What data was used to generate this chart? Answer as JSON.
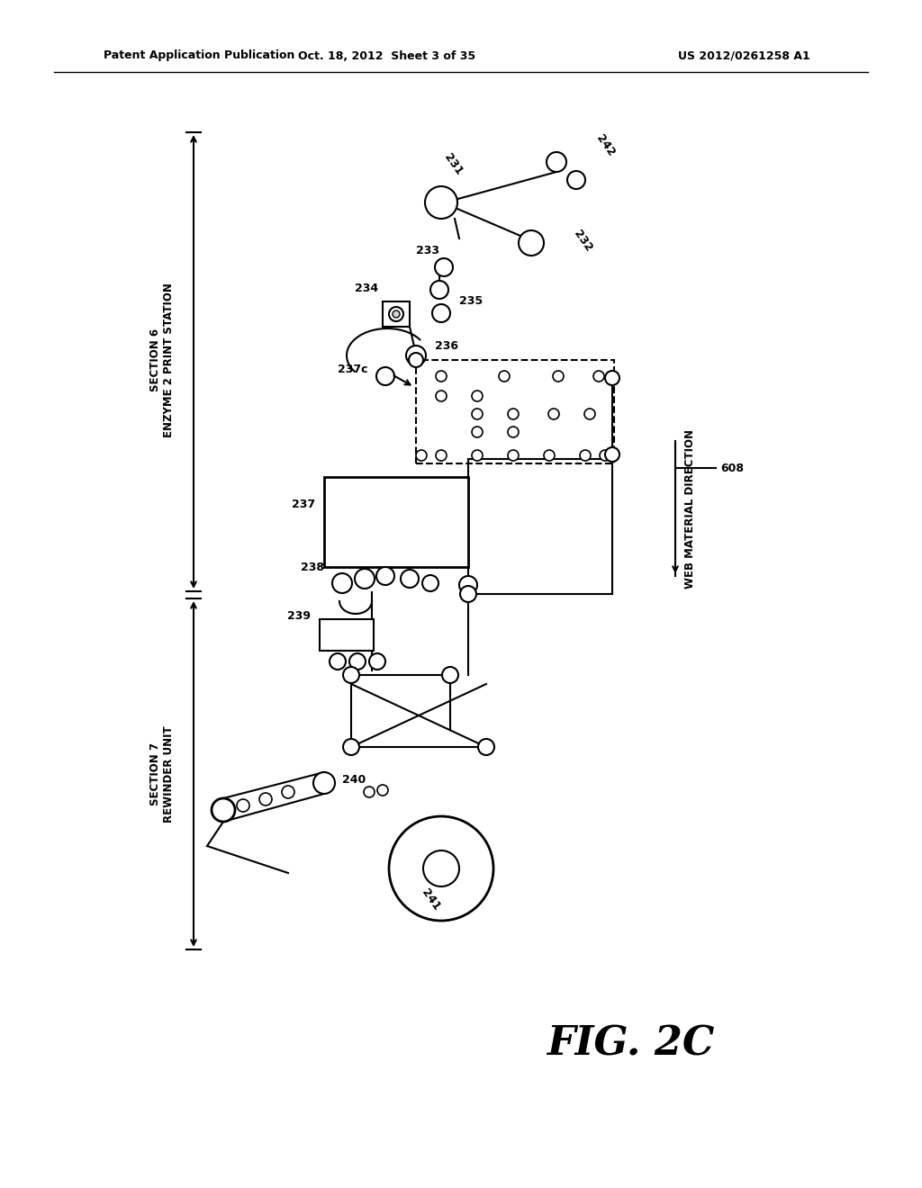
{
  "title_left": "Patent Application Publication",
  "title_center": "Oct. 18, 2012  Sheet 3 of 35",
  "title_right": "US 2012/0261258 A1",
  "fig_label": "FIG. 2C",
  "section6_label": "SECTION 6\nENZYME 2 PRINT STATION",
  "section7_label": "SECTION 7\nREWINDER UNIT",
  "web_material_label": "WEB MATERIAL DIRECTION",
  "bg_color": "#ffffff"
}
